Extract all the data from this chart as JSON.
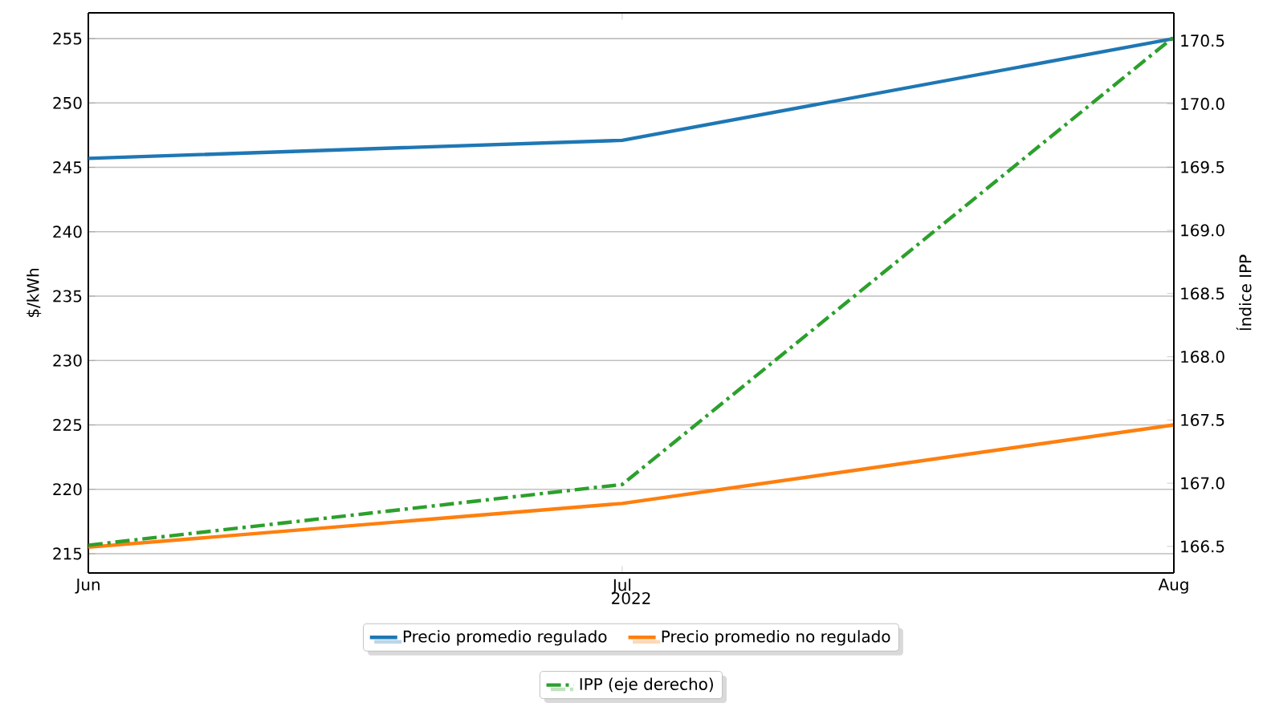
{
  "chart_data": {
    "type": "line",
    "x": [
      "2022-06",
      "2022-07",
      "2022-08"
    ],
    "xlim": [
      "2022-06",
      "2022-08"
    ],
    "xticks": [
      {
        "value": "2022-06",
        "label": "Jun"
      },
      {
        "value": "2022-07",
        "label": "Jul"
      },
      {
        "value": "2022-08",
        "label": "Aug"
      }
    ],
    "xlabel": "2022",
    "ylabel": "$/kWh",
    "y2label": "Índice IPP",
    "ylim": [
      213.5,
      257.0
    ],
    "yticks": [
      215,
      220,
      225,
      230,
      235,
      240,
      245,
      250,
      255
    ],
    "y2lim": [
      166.29,
      170.72
    ],
    "y2ticks": [
      {
        "value": 166.5,
        "label": "166.5"
      },
      {
        "value": 167,
        "label": "167.0"
      },
      {
        "value": 167.5,
        "label": "167.5"
      },
      {
        "value": 168,
        "label": "168.0"
      },
      {
        "value": 168.5,
        "label": "168.5"
      },
      {
        "value": 169,
        "label": "169.0"
      },
      {
        "value": 169.5,
        "label": "169.5"
      },
      {
        "value": 170,
        "label": "170.0"
      },
      {
        "value": 170.5,
        "label": "170.5"
      }
    ],
    "grid": "y",
    "legend": "bottom",
    "series": [
      {
        "name": "Precio promedio regulado",
        "color": "#1f77b4",
        "values": [
          245.7,
          247.1,
          255.0
        ]
      },
      {
        "name": "Precio promedio no regulado",
        "color": "#ff7f0e",
        "values": [
          215.5,
          218.9,
          225.0
        ]
      },
      {
        "name": "IPP (eje derecho)",
        "color": "#2ca02c",
        "axis": "y2",
        "line_style": "dashdot",
        "values": [
          166.51,
          166.99,
          170.53
        ]
      }
    ]
  }
}
